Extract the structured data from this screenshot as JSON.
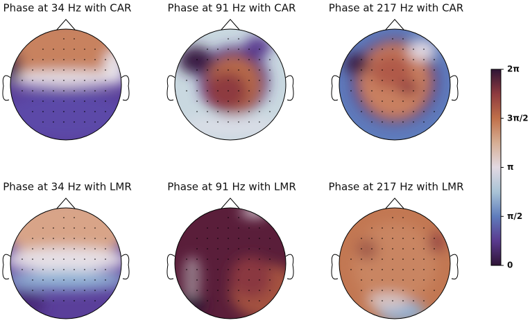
{
  "chart_data": [
    {
      "type": "topomap",
      "title": "Phase at 34 Hz with CAR"
    },
    {
      "type": "topomap",
      "title": "Phase at 91 Hz with CAR"
    },
    {
      "type": "topomap",
      "title": "Phase at 217 Hz with CAR"
    },
    {
      "type": "topomap",
      "title": "Phase at 34 Hz with LMR"
    },
    {
      "type": "topomap",
      "title": "Phase at 91 Hz with LMR"
    },
    {
      "type": "topomap",
      "title": "Phase at 217 Hz with LMR"
    },
    {
      "type": "colorbar",
      "colormap": [
        "#2f1436",
        "#5a3a8f",
        "#5f7cbc",
        "#a9c3d6",
        "#e2d9e2",
        "#d6ae94",
        "#c0704a",
        "#8e3a3f",
        "#2f1436"
      ],
      "ylim": [
        0,
        6.2832
      ],
      "yticks": [
        0,
        {
          "value": 1.5708,
          "label": "π/2"
        },
        {
          "value": 3.1416,
          "label": "π"
        },
        {
          "value": 4.7124,
          "label": "3π/2"
        },
        {
          "value": 6.2832,
          "label": "2π"
        }
      ]
    }
  ]
}
